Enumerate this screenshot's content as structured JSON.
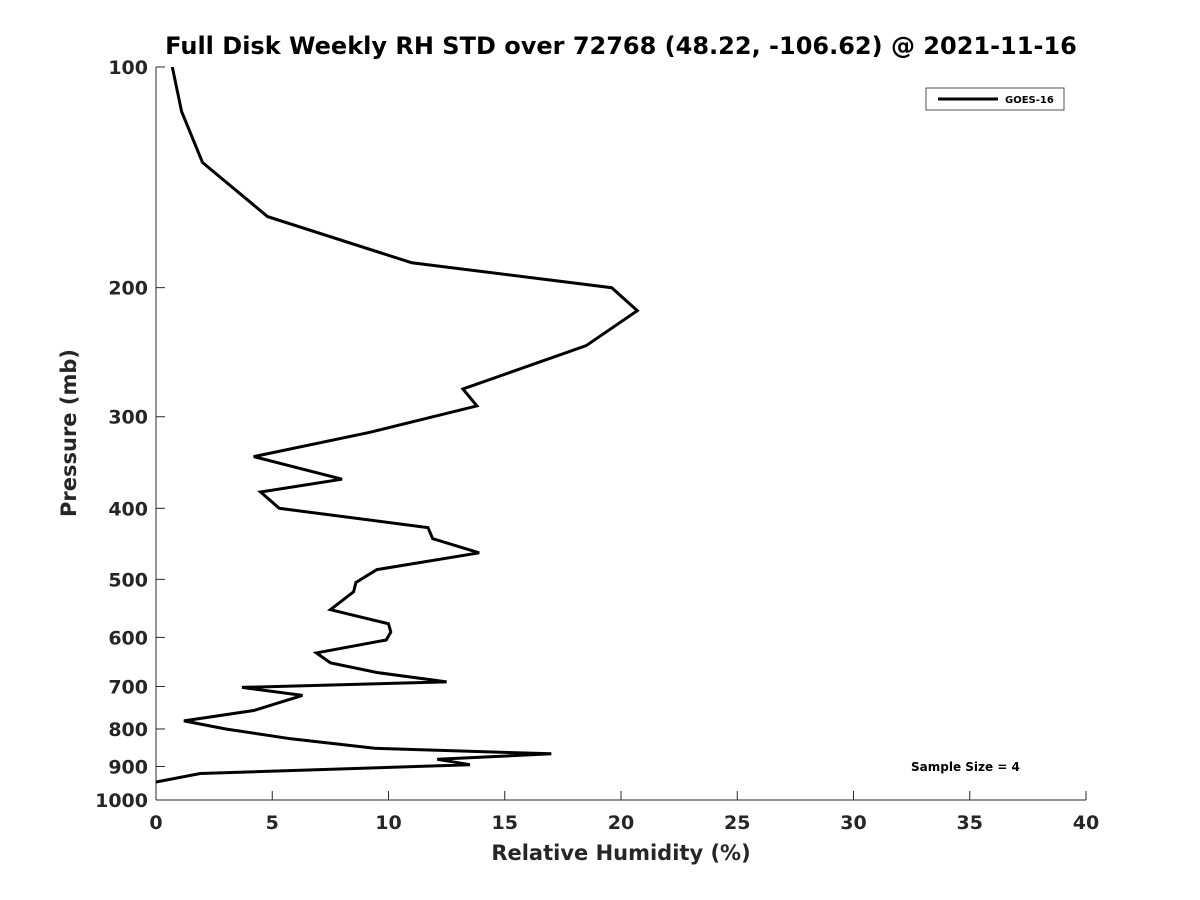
{
  "chart_data": {
    "type": "line",
    "title": "Full Disk Weekly RH STD over 72768 (48.22, -106.62) @ 2021-11-16",
    "xlabel": "Relative Humidity (%)",
    "ylabel": "Pressure (mb)",
    "xlim": [
      0,
      40
    ],
    "ylim": [
      100,
      1000
    ],
    "y_scale": "log",
    "y_reversed": true,
    "x_ticks": [
      0,
      5,
      10,
      15,
      20,
      25,
      30,
      35,
      40
    ],
    "y_ticks": [
      100,
      200,
      300,
      400,
      500,
      600,
      700,
      800,
      900,
      1000
    ],
    "grid": false,
    "legend_position": "top-right",
    "annotation": "Sample Size = 4",
    "series": [
      {
        "name": "GOES-16",
        "color": "#000000",
        "x": [
          0.7,
          1.1,
          2.0,
          4.8,
          11.0,
          19.6,
          20.7,
          18.5,
          13.2,
          13.8,
          9.2,
          4.2,
          8.0,
          4.5,
          5.3,
          11.7,
          11.9,
          13.9,
          9.5,
          8.6,
          8.5,
          7.5,
          10.0,
          10.1,
          9.9,
          6.9,
          7.5,
          9.5,
          12.5,
          3.7,
          6.3,
          4.2,
          1.2,
          3.0,
          5.8,
          9.4,
          17.0,
          12.1,
          13.5,
          1.9,
          0.0
        ],
        "y": [
          100,
          115,
          135,
          160,
          185,
          200,
          215,
          240,
          275,
          290,
          315,
          340,
          365,
          380,
          400,
          425,
          440,
          460,
          485,
          505,
          520,
          550,
          575,
          590,
          605,
          630,
          650,
          670,
          690,
          702,
          720,
          755,
          780,
          800,
          825,
          850,
          865,
          880,
          895,
          920,
          945
        ]
      }
    ]
  }
}
